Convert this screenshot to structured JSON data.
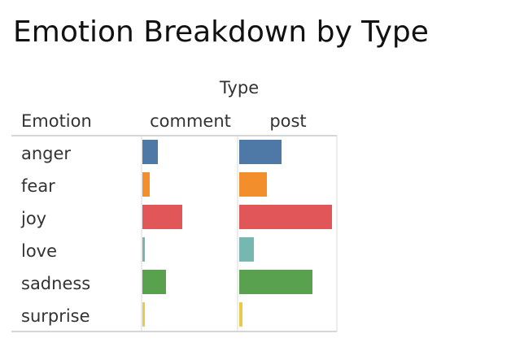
{
  "chart_data": {
    "type": "bar",
    "title": "Emotion Breakdown by Type",
    "column_header": "Type",
    "row_header": "Emotion",
    "categories": [
      "anger",
      "fear",
      "joy",
      "love",
      "sadness",
      "surprise"
    ],
    "series": [
      {
        "name": "comment",
        "values": [
          19,
          9,
          49,
          3,
          29,
          3
        ]
      },
      {
        "name": "post",
        "values": [
          52,
          34,
          114,
          18,
          90,
          4
        ]
      }
    ],
    "colors": {
      "anger": "#4e79a7",
      "fear": "#f28e2b",
      "joy": "#e15759",
      "love": "#76b7b2",
      "sadness": "#59a14f",
      "surprise": "#edc948"
    },
    "xlim": [
      0,
      114
    ],
    "grid": false
  }
}
